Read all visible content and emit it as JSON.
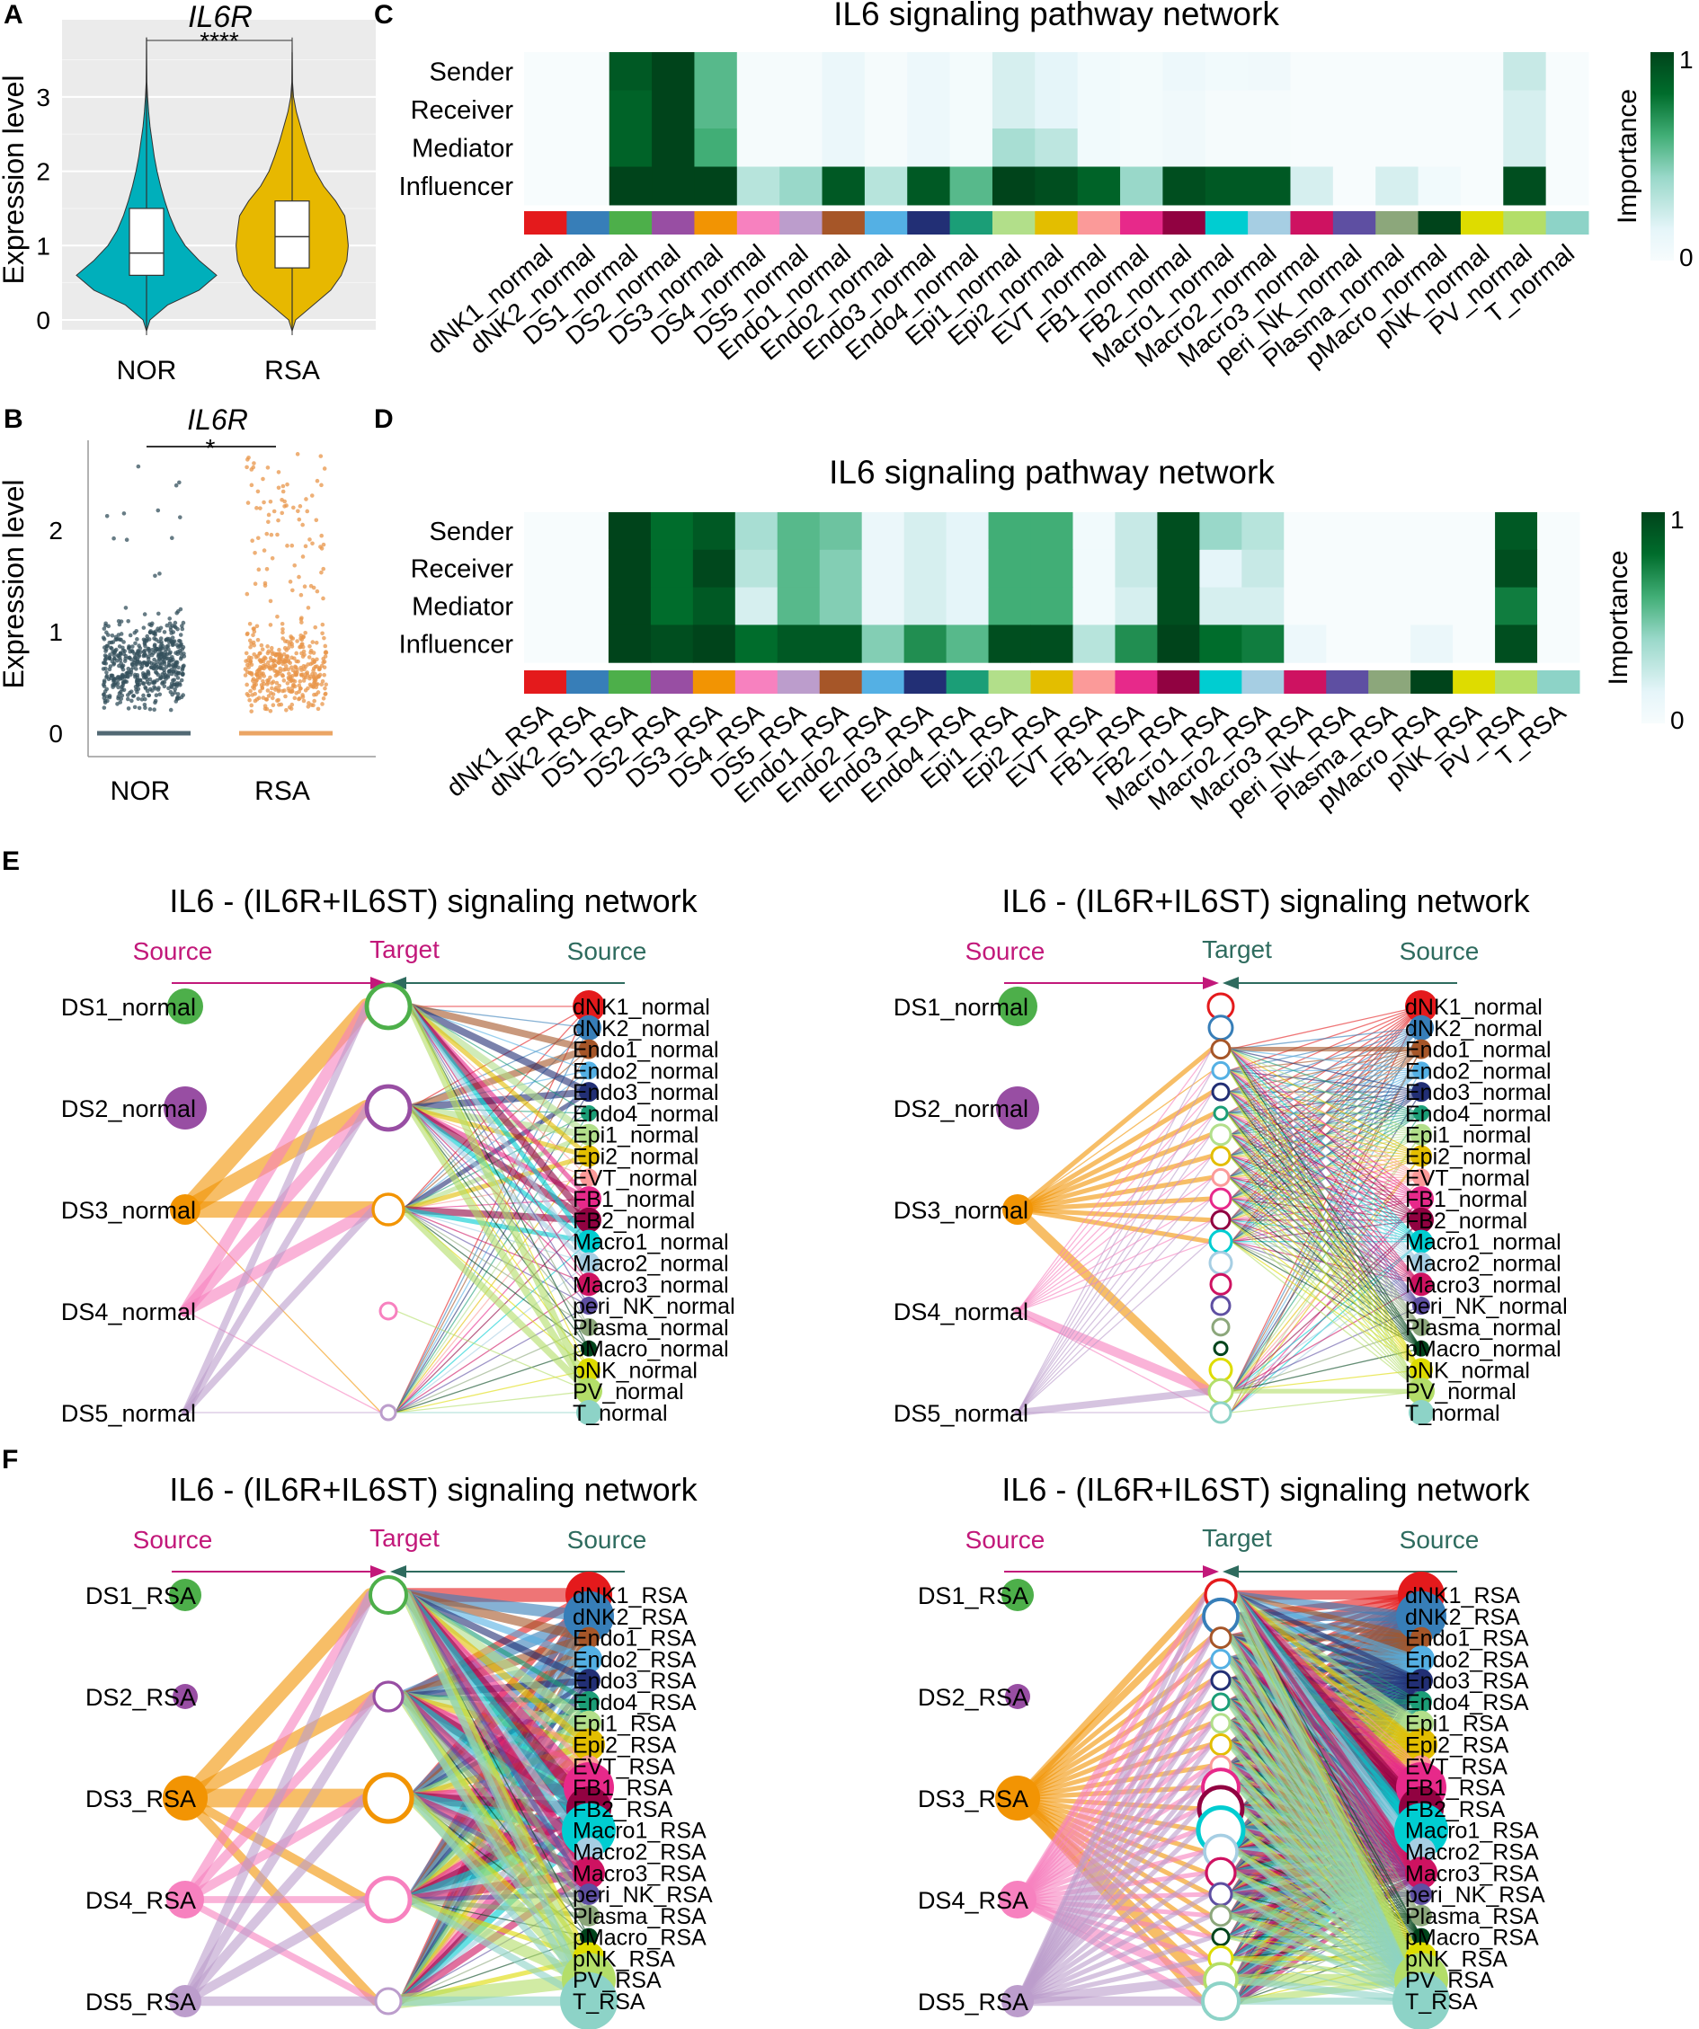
{
  "panel_labels": {
    "A": "A",
    "B": "B",
    "C": "C",
    "D": "D",
    "E": "E",
    "F": "F"
  },
  "cell_colors": {
    "dNK1": "#E41A1C",
    "dNK2": "#377EB8",
    "DS1": "#4DAF4A",
    "DS2": "#984EA3",
    "DS3": "#F29403",
    "DS4": "#F781BF",
    "DS5": "#BC9DCC",
    "Endo1": "#A65628",
    "Endo2": "#54B0E4",
    "Endo3": "#222F75",
    "Endo4": "#1B9E77",
    "Epi1": "#B2DF8A",
    "Epi2": "#E3BE00",
    "EVT": "#FB9A99",
    "FB1": "#E7298A",
    "FB2": "#910241",
    "Macro1": "#00CDD1",
    "Macro2": "#A6CEE3",
    "Macro3": "#CE1261",
    "peri_NK": "#5E4FA2",
    "Plasma": "#8CA77B",
    "pMacro": "#00441B",
    "pNK": "#DEDC00",
    "PV": "#B3DE69",
    "T": "#8DD3C7"
  },
  "chart_data": [
    {
      "type": "violin",
      "title": "IL6R",
      "significance": "****",
      "ylabel": "Expression level",
      "yticks": [
        "0",
        "1",
        "2",
        "3"
      ],
      "ylim": [
        -0.2,
        3.8
      ],
      "categories": [
        "NOR",
        "RSA"
      ],
      "colors": [
        "#00AFBB",
        "#E7B800"
      ],
      "density_y": [
        -0.15,
        0,
        0.2,
        0.4,
        0.6,
        0.8,
        1.0,
        1.2,
        1.4,
        1.6,
        1.8,
        2.0,
        2.2,
        2.4,
        2.6,
        2.8,
        3.0,
        3.2,
        3.5,
        3.8
      ],
      "series": [
        {
          "name": "NOR",
          "density": [
            0,
            0.05,
            0.3,
            0.75,
            1.0,
            0.75,
            0.55,
            0.42,
            0.33,
            0.26,
            0.2,
            0.15,
            0.11,
            0.08,
            0.05,
            0.03,
            0.015,
            0.005,
            0.002,
            0
          ],
          "q1": 0.6,
          "median": 0.9,
          "q3": 1.5,
          "min": -0.15,
          "max": 3.8
        },
        {
          "name": "RSA",
          "density": [
            0,
            0.05,
            0.3,
            0.55,
            0.7,
            0.78,
            0.8,
            0.78,
            0.75,
            0.62,
            0.45,
            0.33,
            0.25,
            0.18,
            0.12,
            0.06,
            0.02,
            0.005,
            0.002,
            0
          ],
          "q1": 0.7,
          "median": 1.12,
          "q3": 1.6,
          "min": -0.15,
          "max": 3.6
        }
      ]
    },
    {
      "type": "scatter",
      "title": "IL6R",
      "significance": "*",
      "ylabel": "Expression level",
      "yticks": [
        "0",
        "1",
        "2"
      ],
      "ylim": [
        -0.2,
        2.9
      ],
      "categories": [
        "NOR",
        "RSA"
      ],
      "series": [
        {
          "name": "NOR",
          "color": "#34505C",
          "n_zero": 300,
          "n_core": 520,
          "core_range": [
            0.2,
            1.35
          ],
          "n_high": 12,
          "high_range": [
            1.35,
            2.7
          ]
        },
        {
          "name": "RSA",
          "color": "#E8964A",
          "n_zero": 300,
          "n_core": 380,
          "core_range": [
            0.15,
            1.3
          ],
          "n_high": 80,
          "high_range": [
            1.3,
            2.75
          ]
        }
      ]
    },
    {
      "type": "heatmap",
      "title": "IL6 signaling pathway network",
      "rows": [
        "Sender",
        "Receiver",
        "Mediator",
        "Influencer"
      ],
      "columns": [
        "dNK1_normal",
        "dNK2_normal",
        "DS1_normal",
        "DS2_normal",
        "DS3_normal",
        "DS4_normal",
        "DS5_normal",
        "Endo1_normal",
        "Endo2_normal",
        "Endo3_normal",
        "Endo4_normal",
        "Epi1_normal",
        "Epi2_normal",
        "EVT_normal",
        "FB1_normal",
        "FB2_normal",
        "Macro1_normal",
        "Macro2_normal",
        "Macro3_normal",
        "peri_NK_normal",
        "Plasma_normal",
        "pMacro_normal",
        "pNK_normal",
        "PV_normal",
        "T_normal"
      ],
      "values": [
        [
          0,
          0,
          0.9,
          1,
          0.55,
          0.02,
          0.02,
          0.1,
          0.02,
          0.08,
          0.03,
          0.2,
          0.15,
          0.05,
          0.03,
          0.08,
          0.05,
          0.06,
          0,
          0,
          0,
          0,
          0,
          0.25,
          0
        ],
        [
          0,
          0,
          0.85,
          1,
          0.55,
          0.02,
          0.02,
          0.1,
          0.02,
          0.08,
          0.03,
          0.2,
          0.15,
          0.05,
          0.03,
          0.06,
          0.02,
          0.02,
          0,
          0,
          0,
          0,
          0,
          0.2,
          0
        ],
        [
          0,
          0,
          0.85,
          1,
          0.6,
          0.02,
          0.02,
          0.1,
          0.02,
          0.08,
          0.03,
          0.35,
          0.28,
          0.05,
          0.03,
          0.06,
          0.02,
          0.02,
          0,
          0,
          0,
          0,
          0,
          0.2,
          0
        ],
        [
          0,
          0,
          1,
          1,
          1,
          0.3,
          0.4,
          0.9,
          0.3,
          0.9,
          0.55,
          1,
          0.95,
          0.85,
          0.4,
          0.95,
          0.9,
          0.9,
          0.2,
          0,
          0.2,
          0.05,
          0,
          0.95,
          0
        ]
      ],
      "legend_title": "Importance",
      "legend_range": [
        "0",
        "1"
      ]
    },
    {
      "type": "heatmap",
      "title": "IL6 signaling pathway network",
      "rows": [
        "Sender",
        "Receiver",
        "Mediator",
        "Influencer"
      ],
      "columns": [
        "dNK1_RSA",
        "dNK2_RSA",
        "DS1_RSA",
        "DS2_RSA",
        "DS3_RSA",
        "DS4_RSA",
        "DS5_RSA",
        "Endo1_RSA",
        "Endo2_RSA",
        "Endo3_RSA",
        "Endo4_RSA",
        "Epi1_RSA",
        "Epi2_RSA",
        "EVT_RSA",
        "FB1_RSA",
        "FB2_RSA",
        "Macro1_RSA",
        "Macro2_RSA",
        "Macro3_RSA",
        "peri_NK_RSA",
        "Plasma_RSA",
        "pMacro_RSA",
        "pNK_RSA",
        "PV_RSA",
        "T_RSA"
      ],
      "values": [
        [
          0,
          0,
          1,
          0.8,
          0.9,
          0.35,
          0.55,
          0.5,
          0.1,
          0.2,
          0.15,
          0.6,
          0.6,
          0.05,
          0.25,
          0.95,
          0.4,
          0.3,
          0,
          0,
          0,
          0,
          0,
          0.9,
          0
        ],
        [
          0,
          0,
          1,
          0.8,
          0.98,
          0.3,
          0.55,
          0.45,
          0.1,
          0.2,
          0.15,
          0.6,
          0.6,
          0.05,
          0.25,
          0.95,
          0.15,
          0.25,
          0,
          0,
          0,
          0,
          0,
          0.95,
          0
        ],
        [
          0,
          0,
          1,
          0.8,
          0.9,
          0.2,
          0.55,
          0.45,
          0.1,
          0.2,
          0.15,
          0.6,
          0.6,
          0.05,
          0.2,
          0.95,
          0.2,
          0.2,
          0,
          0,
          0,
          0,
          0,
          0.75,
          0
        ],
        [
          0,
          0,
          1,
          0.95,
          1,
          0.8,
          0.9,
          0.9,
          0.45,
          0.7,
          0.55,
          0.95,
          0.95,
          0.3,
          0.7,
          1,
          0.8,
          0.75,
          0.08,
          0,
          0,
          0.1,
          0,
          0.95,
          0
        ]
      ],
      "legend_title": "Importance",
      "legend_range": [
        "0",
        "1"
      ]
    },
    {
      "type": "network",
      "title": "IL6 - (IL6R+IL6ST) signaling network",
      "header": {
        "left": "Source",
        "mid": "Target",
        "right": "Source",
        "mid_color": "#C2187A"
      },
      "left_sources": [
        "DS1_normal",
        "DS2_normal",
        "DS3_normal",
        "DS4_normal",
        "DS5_normal"
      ],
      "left_strength": [
        20,
        24,
        17,
        3,
        3
      ],
      "targets": [
        "DS1_normal",
        "DS2_normal",
        "DS3_normal",
        "DS4_normal",
        "DS5_normal"
      ],
      "target_strength": [
        24,
        24,
        17,
        9,
        8
      ],
      "right_sources": [
        "dNK1_normal",
        "dNK2_normal",
        "Endo1_normal",
        "Endo2_normal",
        "Endo3_normal",
        "Endo4_normal",
        "Epi1_normal",
        "Epi2_normal",
        "EVT_normal",
        "FB1_normal",
        "FB2_normal",
        "Macro1_normal",
        "Macro2_normal",
        "Macro3_normal",
        "peri_NK_normal",
        "Plasma_normal",
        "pMacro_normal",
        "pNK_normal",
        "PV_normal",
        "T_normal"
      ],
      "right_strength": [
        18,
        14,
        11,
        10,
        11,
        9,
        12,
        12,
        10,
        14,
        14,
        13,
        12,
        13,
        10,
        10,
        9,
        13,
        15,
        14
      ],
      "weights_left": [
        "00000",
        "00000",
        "77701",
        "55501",
        "33301"
      ],
      "weights_right": [
        "11101",
        "11101",
        "33101",
        "11101",
        "33201",
        "11101",
        "33201",
        "22201",
        "11101",
        "22101",
        "33301",
        "22201",
        "22101",
        "11101",
        "11101",
        "11101",
        "11101",
        "11101",
        "33311",
        "00001"
      ]
    },
    {
      "type": "network",
      "title": "IL6 - (IL6R+IL6ST) signaling network",
      "header": {
        "left": "Source",
        "mid": "Target",
        "right": "Source",
        "mid_color": "#2E6B5E"
      },
      "left_sources": [
        "DS1_normal",
        "DS2_normal",
        "DS3_normal",
        "DS4_normal",
        "DS5_normal"
      ],
      "left_strength": [
        22,
        24,
        17,
        3,
        3
      ],
      "targets": [
        "dNK1_normal",
        "dNK2_normal",
        "Endo1_normal",
        "Endo2_normal",
        "Endo3_normal",
        "Endo4_normal",
        "Epi1_normal",
        "Epi2_normal",
        "EVT_normal",
        "FB1_normal",
        "FB2_normal",
        "Macro1_normal",
        "Macro2_normal",
        "Macro3_normal",
        "peri_NK_normal",
        "Plasma_normal",
        "pMacro_normal",
        "pNK_normal",
        "PV_normal",
        "T_normal"
      ],
      "target_strength": [
        14,
        13,
        10,
        9,
        9,
        7,
        11,
        10,
        9,
        11,
        10,
        12,
        12,
        11,
        10,
        9,
        7,
        12,
        13,
        11
      ],
      "right_sources": [
        "dNK1_normal",
        "dNK2_normal",
        "Endo1_normal",
        "Endo2_normal",
        "Endo3_normal",
        "Endo4_normal",
        "Epi1_normal",
        "Epi2_normal",
        "EVT_normal",
        "FB1_normal",
        "FB2_normal",
        "Macro1_normal",
        "Macro2_normal",
        "Macro3_normal",
        "peri_NK_normal",
        "Plasma_normal",
        "pMacro_normal",
        "pNK_normal",
        "PV_normal",
        "T_normal"
      ],
      "right_strength": [
        18,
        14,
        11,
        10,
        11,
        9,
        12,
        12,
        10,
        14,
        14,
        13,
        12,
        13,
        10,
        10,
        9,
        13,
        15,
        14
      ],
      "weights_left": [
        "00000000000000000000",
        "00000000000000000000",
        "00212222222200000040",
        "00111111111100000041",
        "00111111111100000031"
      ],
      "weights_right": [
        "00111111111100000010",
        "00111111111100000010",
        "00211111111100000011",
        "00111111111100000010",
        "00111111111100000010",
        "00111111111100000010",
        "00111111111100000011",
        "00111111111100000011",
        "00111111111100000010",
        "00111111111100000011",
        "00111111111100000011",
        "00111111111100000011",
        "00111111111100000011",
        "00111111111100000010",
        "00111111111100000010",
        "00111111111100000010",
        "00111111111100000010",
        "00111111111100000010",
        "00111111111100000021",
        "00000000000000000000"
      ]
    },
    {
      "type": "network",
      "title": "IL6 - (IL6R+IL6ST) signaling network",
      "header": {
        "left": "Source",
        "mid": "Target",
        "right": "Source",
        "mid_color": "#C2187A"
      },
      "left_sources": [
        "DS1_RSA",
        "DS2_RSA",
        "DS3_RSA",
        "DS4_RSA",
        "DS5_RSA"
      ],
      "left_strength": [
        18,
        14,
        25,
        21,
        18
      ],
      "targets": [
        "DS1_RSA",
        "DS2_RSA",
        "DS3_RSA",
        "DS4_RSA",
        "DS5_RSA"
      ],
      "target_strength": [
        20,
        16,
        26,
        24,
        14
      ],
      "right_sources": [
        "dNK1_RSA",
        "dNK2_RSA",
        "Endo1_RSA",
        "Endo2_RSA",
        "Endo3_RSA",
        "Endo4_RSA",
        "Epi1_RSA",
        "Epi2_RSA",
        "EVT_RSA",
        "FB1_RSA",
        "FB2_RSA",
        "Macro1_RSA",
        "Macro2_RSA",
        "Macro3_RSA",
        "peri_NK_RSA",
        "Plasma_RSA",
        "pMacro_RSA",
        "pNK_RSA",
        "PV_RSA",
        "T_RSA"
      ],
      "right_strength": [
        26,
        28,
        12,
        15,
        13,
        12,
        14,
        18,
        12,
        28,
        25,
        30,
        16,
        18,
        12,
        12,
        10,
        18,
        30,
        32
      ],
      "weights_left": [
        "00000",
        "00000",
        "66844",
        "44433",
        "44444"
      ],
      "weights_right": [
        "63332",
        "55442",
        "44332",
        "33332",
        "33222",
        "22222",
        "44443",
        "33332",
        "22222",
        "55553",
        "55553",
        "55553",
        "33332",
        "44443",
        "22221",
        "22221",
        "11111",
        "22222",
        "55556",
        "33334"
      ]
    },
    {
      "type": "network",
      "title": "IL6 - (IL6R+IL6ST) signaling network",
      "header": {
        "left": "Source",
        "mid": "Target",
        "right": "Source",
        "mid_color": "#2E6B5E"
      },
      "left_sources": [
        "DS1_RSA",
        "DS2_RSA",
        "DS3_RSA",
        "DS4_RSA",
        "DS5_RSA"
      ],
      "left_strength": [
        18,
        14,
        25,
        21,
        18
      ],
      "targets": [
        "dNK1_RSA",
        "dNK2_RSA",
        "Endo1_RSA",
        "Endo2_RSA",
        "Endo3_RSA",
        "Endo4_RSA",
        "Epi1_RSA",
        "Epi2_RSA",
        "EVT_RSA",
        "FB1_RSA",
        "FB2_RSA",
        "Macro1_RSA",
        "Macro2_RSA",
        "Macro3_RSA",
        "peri_NK_RSA",
        "Plasma_RSA",
        "pMacro_RSA",
        "pNK_RSA",
        "PV_RSA",
        "T_RSA"
      ],
      "target_strength": [
        17,
        19,
        11,
        10,
        10,
        9,
        10,
        11,
        11,
        20,
        24,
        25,
        18,
        16,
        12,
        11,
        9,
        13,
        18,
        20
      ],
      "right_sources": [
        "dNK1_RSA",
        "dNK2_RSA",
        "Endo1_RSA",
        "Endo2_RSA",
        "Endo3_RSA",
        "Endo4_RSA",
        "Epi1_RSA",
        "Epi2_RSA",
        "EVT_RSA",
        "FB1_RSA",
        "FB2_RSA",
        "Macro1_RSA",
        "Macro2_RSA",
        "Macro3_RSA",
        "peri_NK_RSA",
        "Plasma_RSA",
        "pMacro_RSA",
        "pNK_RSA",
        "PV_RSA",
        "T_RSA"
      ],
      "right_strength": [
        26,
        28,
        12,
        15,
        13,
        12,
        14,
        18,
        12,
        28,
        25,
        30,
        16,
        18,
        12,
        12,
        10,
        18,
        30,
        32
      ],
      "weights_left": [
        "00000000000000000000",
        "00000000000000000000",
        "33222222222222222253",
        "22222222222222222243",
        "22222222222222222244"
      ],
      "weights_right": [
        "43322223332333221133",
        "34322223332333221133",
        "22322222222222221122",
        "22232222222222221122",
        "22223222222222221122",
        "11111211111111111111",
        "22222232232222221132",
        "22222223222222221122",
        "11111111211111111111",
        "33333333343333332243",
        "33333333334333332243",
        "33333333333433332243",
        "22222222222232221122",
        "22222222222223221122",
        "11111111111111211111",
        "11111111111111121111",
        "11111111111111111111",
        "11111111111111111211",
        "33333333333333332253",
        "22222222222222221133"
      ]
    }
  ]
}
